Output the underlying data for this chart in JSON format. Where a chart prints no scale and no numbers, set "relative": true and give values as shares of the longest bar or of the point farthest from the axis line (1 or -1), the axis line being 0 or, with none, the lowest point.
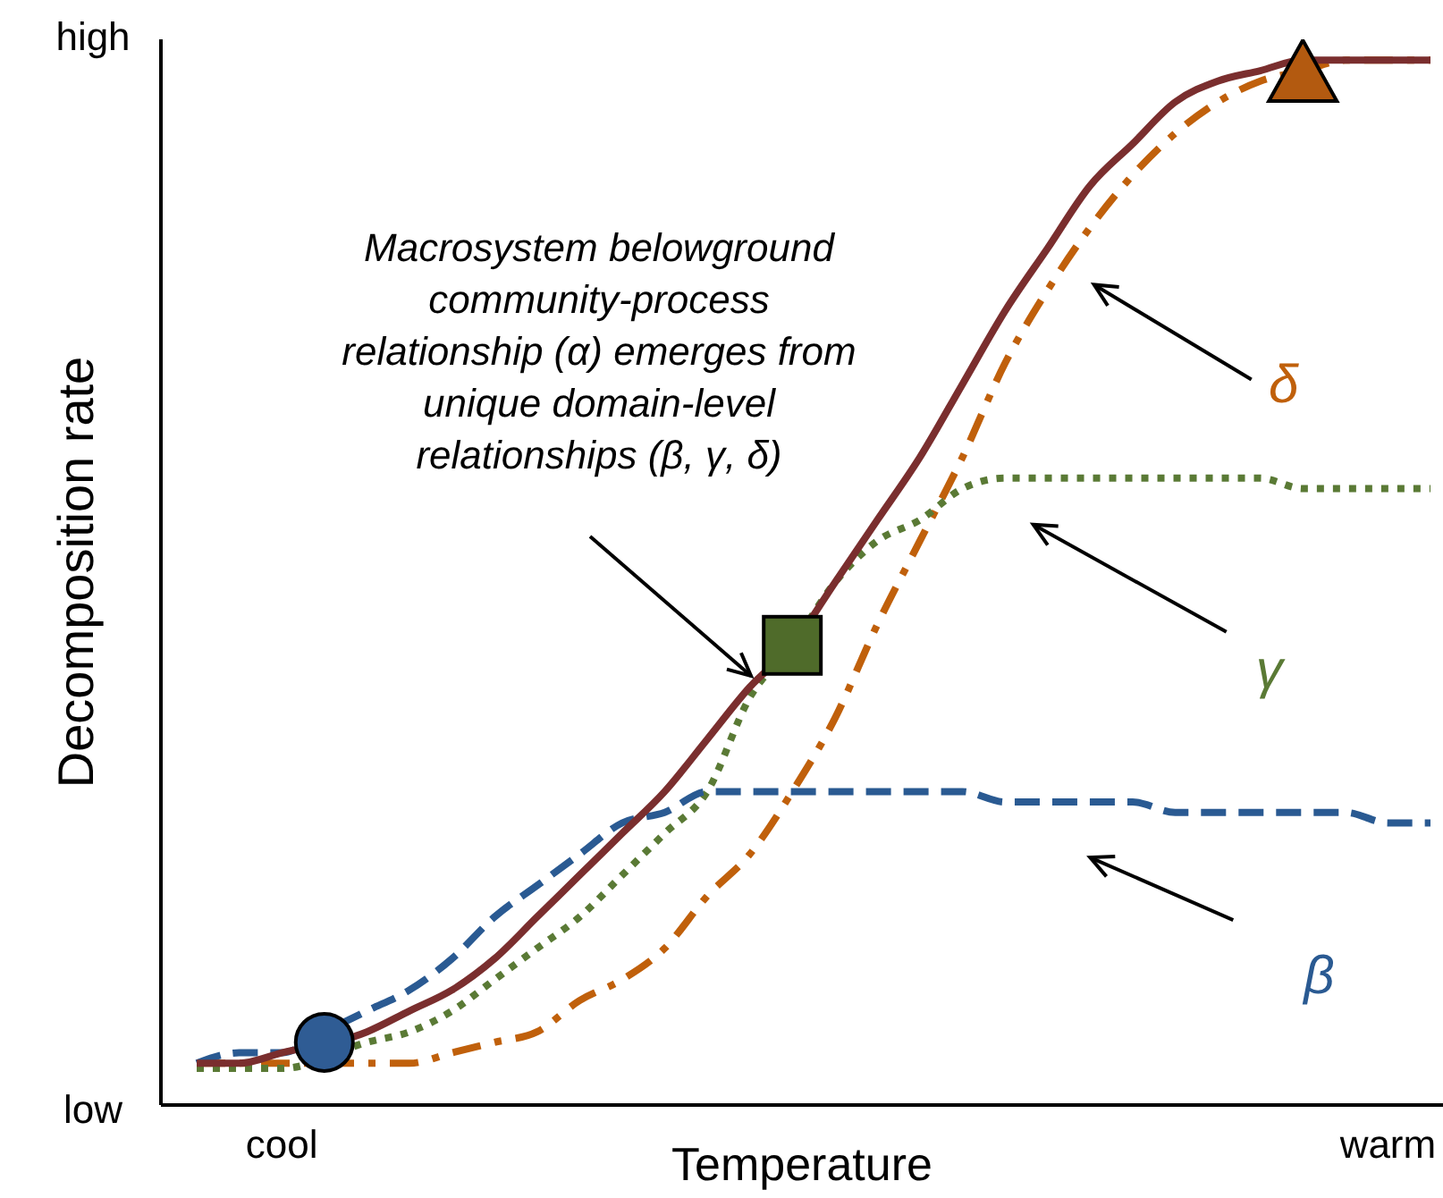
{
  "chart_data": {
    "type": "line",
    "relative": true,
    "xlabel": "Temperature",
    "ylabel": "Decomposition rate",
    "categories": [
      null,
      null,
      "cool",
      null,
      null,
      null,
      null,
      null,
      null,
      null,
      null,
      null,
      null,
      null,
      null,
      null,
      null,
      null,
      null,
      null,
      null,
      null,
      null,
      null,
      null,
      null,
      null,
      null,
      "warm",
      null
    ],
    "annotations": [
      "low",
      "high",
      "Macrosystem belowground community-process relationship (α) emerges from unique domain-level relationships (β, γ, δ)"
    ],
    "legend": false,
    "grid": false,
    "series": [
      {
        "color": "#7a2e2e",
        "line_style": "solid",
        "values": [
          0.04,
          0.04,
          0.05,
          null,
          0.07,
          0.09,
          0.11,
          0.14,
          0.18,
          0.22,
          0.26,
          0.3,
          0.35,
          0.4,
          0.44,
          0.5,
          0.56,
          0.62,
          0.69,
          0.76,
          0.82,
          0.88,
          0.92,
          0.96,
          0.98,
          0.99,
          1,
          1,
          1,
          1
        ]
      },
      {
        "name": "β",
        "color": "#2a5a92",
        "line_style": "dashed",
        "values": [
          0.04,
          0.05,
          0.05,
          0.07,
          0.09,
          0.11,
          0.14,
          0.18,
          0.21,
          0.24,
          0.27,
          0.28,
          0.3,
          0.3,
          0.3,
          0.3,
          0.3,
          0.3,
          0.3,
          0.29,
          0.29,
          0.29,
          0.29,
          0.28,
          0.28,
          0.28,
          0.28,
          0.28,
          0.27,
          0.27
        ]
      },
      {
        "name": "γ",
        "color": "#5a7a35",
        "line_style": "dotted",
        "values": [
          0.035,
          0.035,
          0.035,
          null,
          0.06,
          0.07,
          0.09,
          0.12,
          0.15,
          0.18,
          0.22,
          0.26,
          0.3,
          0.39,
          0.44,
          0.5,
          0.54,
          0.56,
          0.59,
          0.6,
          0.6,
          0.6,
          0.6,
          0.6,
          0.6,
          0.6,
          0.59,
          0.59,
          0.59,
          0.59
        ]
      },
      {
        "name": "δ",
        "color": "#c0600b",
        "line_style": "dashdot",
        "values": [
          0.04,
          0.04,
          0.04,
          null,
          0.04,
          0.04,
          0.05,
          0.06,
          0.07,
          0.1,
          0.12,
          0.15,
          0.2,
          0.24,
          0.3,
          0.37,
          0.46,
          0.54,
          0.62,
          0.71,
          0.78,
          0.84,
          0.89,
          0.93,
          0.96,
          0.98,
          0.99,
          1,
          1,
          1
        ]
      },
      {
        "type": "scatter",
        "marker": "circle",
        "color": "#2f5c94",
        "values": [
          null,
          null,
          null,
          0.06,
          null,
          null,
          null,
          null,
          null,
          null,
          null,
          null,
          null,
          null,
          null,
          null,
          null,
          null,
          null,
          null,
          null,
          null,
          null,
          null,
          null,
          null,
          null,
          null,
          null,
          null
        ]
      },
      {
        "type": "scatter",
        "marker": "square",
        "color": "#4f6b2a",
        "values": [
          null,
          null,
          null,
          null,
          null,
          null,
          null,
          null,
          null,
          null,
          null,
          null,
          null,
          null,
          0.44,
          null,
          null,
          null,
          null,
          null,
          null,
          null,
          null,
          null,
          null,
          null,
          null,
          null,
          null,
          null
        ]
      },
      {
        "type": "scatter",
        "marker": "triangle",
        "color": "#b35a10",
        "values": [
          null,
          null,
          null,
          null,
          null,
          null,
          null,
          null,
          null,
          null,
          null,
          null,
          null,
          null,
          null,
          null,
          null,
          null,
          null,
          null,
          null,
          null,
          null,
          null,
          null,
          null,
          0.99,
          null,
          null,
          null
        ]
      }
    ]
  }
}
